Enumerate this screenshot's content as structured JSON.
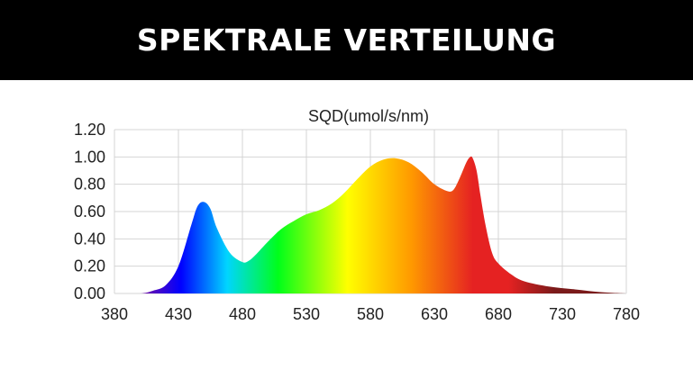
{
  "header": {
    "title": "SPEKTRALE VERTEILUNG"
  },
  "chart_data": {
    "type": "area",
    "title": "SQD(umol/s/nm)",
    "xlabel": "",
    "ylabel": "",
    "xlim": [
      380,
      780
    ],
    "ylim": [
      0,
      1.2
    ],
    "x_ticks": [
      "380",
      "430",
      "480",
      "530",
      "580",
      "630",
      "680",
      "730",
      "780"
    ],
    "y_ticks": [
      "0.00",
      "0.20",
      "0.40",
      "0.60",
      "0.80",
      "1.00",
      "1.20"
    ],
    "grid": true,
    "fill": "spectral colors by wavelength",
    "series": [
      {
        "x": [
          380,
          400,
          410,
          420,
          430,
          440,
          445,
          450,
          455,
          460,
          470,
          480,
          485,
          490,
          500,
          510,
          520,
          530,
          540,
          550,
          560,
          570,
          580,
          590,
          600,
          610,
          620,
          630,
          640,
          645,
          650,
          655,
          658,
          660,
          663,
          666,
          670,
          675,
          680,
          690,
          700,
          720,
          740,
          760,
          780
        ],
        "y": [
          0.0,
          0.0,
          0.02,
          0.06,
          0.2,
          0.5,
          0.64,
          0.67,
          0.62,
          0.48,
          0.3,
          0.23,
          0.24,
          0.28,
          0.38,
          0.47,
          0.53,
          0.58,
          0.61,
          0.66,
          0.74,
          0.84,
          0.93,
          0.98,
          0.99,
          0.96,
          0.89,
          0.8,
          0.75,
          0.76,
          0.85,
          0.96,
          1.0,
          0.99,
          0.9,
          0.72,
          0.5,
          0.3,
          0.22,
          0.14,
          0.09,
          0.05,
          0.03,
          0.01,
          0.0
        ]
      }
    ],
    "colors": {
      "violet": "#6a0dad",
      "blue": "#0000ff",
      "cyan": "#00d5ff",
      "green": "#00ff1a",
      "yellow": "#ffff00",
      "orange": "#ff9900",
      "red": "#e52222",
      "darkred": "#7a1a1a",
      "grid": "#d4d4d4"
    }
  }
}
